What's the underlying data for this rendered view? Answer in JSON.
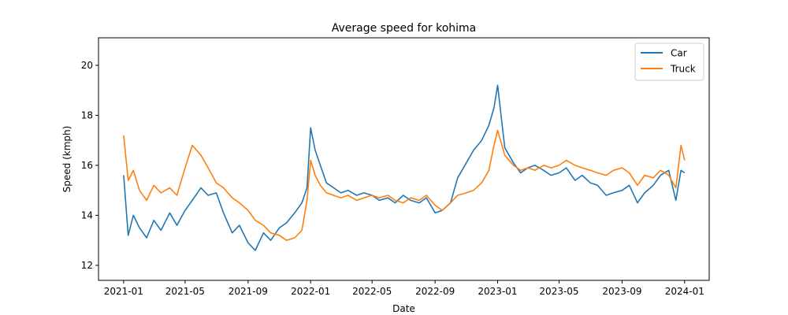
{
  "chart_data": {
    "type": "line",
    "title": "Average speed for kohima",
    "xlabel": "Date",
    "ylabel": "Speed (kmph)",
    "xlim": [
      "2020-11-13",
      "2024-02-18"
    ],
    "ylim": [
      11.4,
      21.1
    ],
    "x_ticks": [
      "2021-01",
      "2021-05",
      "2021-09",
      "2022-01",
      "2022-05",
      "2022-09",
      "2023-01",
      "2023-05",
      "2023-09",
      "2024-01"
    ],
    "y_ticks": [
      12,
      14,
      16,
      18,
      20
    ],
    "grid": false,
    "legend": "top-right",
    "series": [
      {
        "name": "Car",
        "color": "#1f77b4",
        "x": [
          "2021-01-01",
          "2021-01-10",
          "2021-01-20",
          "2021-02-01",
          "2021-02-15",
          "2021-03-01",
          "2021-03-15",
          "2021-04-01",
          "2021-04-15",
          "2021-05-01",
          "2021-05-15",
          "2021-06-01",
          "2021-06-15",
          "2021-07-01",
          "2021-07-15",
          "2021-08-01",
          "2021-08-15",
          "2021-09-01",
          "2021-09-15",
          "2021-10-01",
          "2021-10-15",
          "2021-11-01",
          "2021-11-15",
          "2021-12-01",
          "2021-12-15",
          "2021-12-25",
          "2022-01-01",
          "2022-01-10",
          "2022-01-20",
          "2022-02-01",
          "2022-02-15",
          "2022-03-01",
          "2022-03-15",
          "2022-04-01",
          "2022-04-15",
          "2022-05-01",
          "2022-05-15",
          "2022-06-01",
          "2022-06-15",
          "2022-07-01",
          "2022-07-15",
          "2022-08-01",
          "2022-08-15",
          "2022-09-01",
          "2022-09-15",
          "2022-10-01",
          "2022-10-15",
          "2022-11-01",
          "2022-11-15",
          "2022-12-01",
          "2022-12-15",
          "2022-12-25",
          "2023-01-01",
          "2023-01-15",
          "2023-02-01",
          "2023-02-15",
          "2023-03-01",
          "2023-03-15",
          "2023-04-01",
          "2023-04-15",
          "2023-05-01",
          "2023-05-15",
          "2023-06-01",
          "2023-06-15",
          "2023-07-01",
          "2023-07-15",
          "2023-08-01",
          "2023-08-15",
          "2023-09-01",
          "2023-09-15",
          "2023-10-01",
          "2023-10-15",
          "2023-11-01",
          "2023-11-15",
          "2023-12-01",
          "2023-12-15",
          "2023-12-25",
          "2024-01-01"
        ],
        "values": [
          15.6,
          13.2,
          14.0,
          13.5,
          13.1,
          13.8,
          13.4,
          14.1,
          13.6,
          14.2,
          14.6,
          15.1,
          14.8,
          14.9,
          14.1,
          13.3,
          13.6,
          12.9,
          12.6,
          13.3,
          13.0,
          13.5,
          13.7,
          14.1,
          14.5,
          15.1,
          17.5,
          16.6,
          16.0,
          15.3,
          15.1,
          14.9,
          15.0,
          14.8,
          14.9,
          14.8,
          14.6,
          14.7,
          14.5,
          14.8,
          14.6,
          14.5,
          14.7,
          14.1,
          14.2,
          14.5,
          15.5,
          16.1,
          16.6,
          17.0,
          17.6,
          18.3,
          19.2,
          16.7,
          16.1,
          15.7,
          15.9,
          16.0,
          15.8,
          15.6,
          15.7,
          15.9,
          15.4,
          15.6,
          15.3,
          15.2,
          14.8,
          14.9,
          15.0,
          15.2,
          14.5,
          14.9,
          15.2,
          15.6,
          15.8,
          14.6,
          15.8,
          15.7
        ]
      },
      {
        "name": "Truck",
        "color": "#ff7f0e",
        "x": [
          "2021-01-01",
          "2021-01-10",
          "2021-01-20",
          "2021-02-01",
          "2021-02-15",
          "2021-03-01",
          "2021-03-15",
          "2021-04-01",
          "2021-04-15",
          "2021-05-01",
          "2021-05-15",
          "2021-06-01",
          "2021-06-15",
          "2021-07-01",
          "2021-07-15",
          "2021-08-01",
          "2021-08-15",
          "2021-09-01",
          "2021-09-15",
          "2021-10-01",
          "2021-10-15",
          "2021-11-01",
          "2021-11-15",
          "2021-12-01",
          "2021-12-15",
          "2021-12-25",
          "2022-01-01",
          "2022-01-10",
          "2022-01-20",
          "2022-02-01",
          "2022-02-15",
          "2022-03-01",
          "2022-03-15",
          "2022-04-01",
          "2022-04-15",
          "2022-05-01",
          "2022-05-15",
          "2022-06-01",
          "2022-06-15",
          "2022-07-01",
          "2022-07-15",
          "2022-08-01",
          "2022-08-15",
          "2022-09-01",
          "2022-09-15",
          "2022-10-01",
          "2022-10-15",
          "2022-11-01",
          "2022-11-15",
          "2022-12-01",
          "2022-12-15",
          "2022-12-25",
          "2023-01-01",
          "2023-01-15",
          "2023-02-01",
          "2023-02-15",
          "2023-03-01",
          "2023-03-15",
          "2023-04-01",
          "2023-04-15",
          "2023-05-01",
          "2023-05-15",
          "2023-06-01",
          "2023-06-15",
          "2023-07-01",
          "2023-07-15",
          "2023-08-01",
          "2023-08-15",
          "2023-09-01",
          "2023-09-15",
          "2023-10-01",
          "2023-10-15",
          "2023-11-01",
          "2023-11-15",
          "2023-12-01",
          "2023-12-15",
          "2023-12-25",
          "2024-01-01"
        ],
        "values": [
          17.2,
          15.4,
          15.8,
          15.0,
          14.6,
          15.2,
          14.9,
          15.1,
          14.8,
          15.9,
          16.8,
          16.4,
          15.9,
          15.3,
          15.1,
          14.7,
          14.5,
          14.2,
          13.8,
          13.6,
          13.3,
          13.2,
          13.0,
          13.1,
          13.4,
          14.6,
          16.2,
          15.6,
          15.2,
          14.9,
          14.8,
          14.7,
          14.8,
          14.6,
          14.7,
          14.8,
          14.7,
          14.8,
          14.6,
          14.5,
          14.7,
          14.6,
          14.8,
          14.4,
          14.2,
          14.5,
          14.8,
          14.9,
          15.0,
          15.3,
          15.8,
          16.8,
          17.4,
          16.4,
          16.0,
          15.8,
          15.9,
          15.8,
          16.0,
          15.9,
          16.0,
          16.2,
          16.0,
          15.9,
          15.8,
          15.7,
          15.6,
          15.8,
          15.9,
          15.7,
          15.2,
          15.6,
          15.5,
          15.8,
          15.6,
          15.1,
          16.8,
          16.2
        ]
      }
    ]
  }
}
